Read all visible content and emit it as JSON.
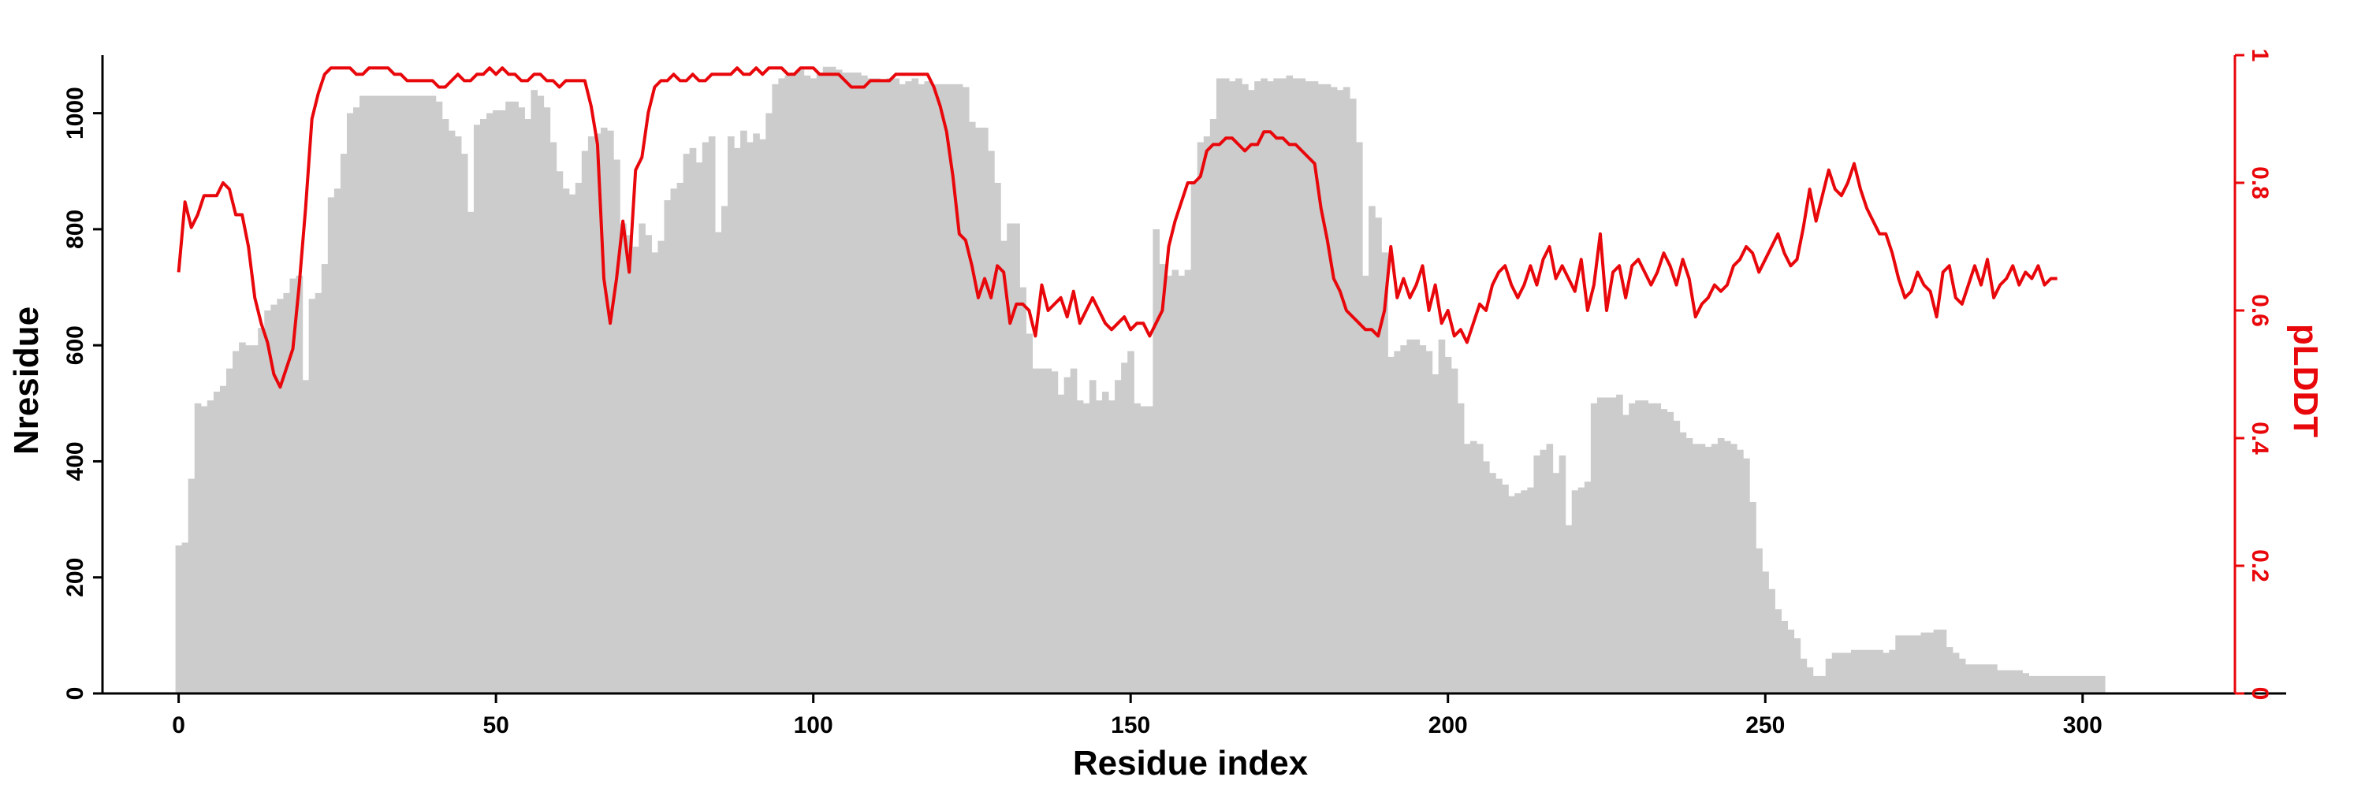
{
  "chart_data": {
    "type": "bar",
    "xlabel": "Residue index",
    "ylabel": "Nresidue",
    "y2label": "pLDDT",
    "xlim": [
      -12,
      324
    ],
    "ylim": [
      0,
      1100
    ],
    "y2lim": [
      0,
      1
    ],
    "xticks": [
      0,
      50,
      100,
      150,
      200,
      250,
      300
    ],
    "yticks": [
      0,
      200,
      400,
      600,
      800,
      1000
    ],
    "y2ticks": [
      0,
      0.2,
      0.4,
      0.6,
      0.8,
      1
    ],
    "y2tick_labels": [
      "0",
      "0.2",
      "0.4",
      "0.6",
      "0.8",
      "1"
    ],
    "series": [
      {
        "type": "bar",
        "axis": "left",
        "color": "#cccccc",
        "x_start": 0,
        "values": [
          255,
          260,
          370,
          500,
          495,
          505,
          520,
          530,
          560,
          590,
          605,
          600,
          600,
          630,
          660,
          670,
          680,
          690,
          715,
          720,
          540,
          680,
          690,
          740,
          855,
          870,
          930,
          1000,
          1010,
          1030,
          1030,
          1030,
          1030,
          1030,
          1030,
          1030,
          1030,
          1030,
          1030,
          1030,
          1030,
          1020,
          990,
          970,
          960,
          930,
          830,
          980,
          990,
          1000,
          1005,
          1005,
          1020,
          1020,
          1010,
          990,
          1040,
          1030,
          1010,
          950,
          900,
          870,
          860,
          880,
          935,
          960,
          965,
          975,
          970,
          920,
          810,
          790,
          770,
          810,
          790,
          760,
          780,
          850,
          870,
          880,
          930,
          940,
          915,
          950,
          960,
          795,
          840,
          960,
          940,
          970,
          950,
          965,
          955,
          1000,
          1050,
          1060,
          1065,
          1070,
          1075,
          1065,
          1060,
          1070,
          1080,
          1080,
          1075,
          1070,
          1070,
          1070,
          1065,
          1060,
          1060,
          1055,
          1060,
          1060,
          1050,
          1055,
          1060,
          1050,
          1055,
          1050,
          1050,
          1050,
          1050,
          1050,
          1045,
          985,
          975,
          975,
          935,
          880,
          780,
          810,
          810,
          700,
          620,
          560,
          560,
          560,
          555,
          515,
          545,
          560,
          505,
          500,
          540,
          505,
          520,
          505,
          540,
          570,
          590,
          500,
          495,
          495,
          800,
          740,
          720,
          730,
          720,
          730,
          880,
          950,
          960,
          990,
          1060,
          1060,
          1055,
          1060,
          1050,
          1040,
          1055,
          1060,
          1055,
          1060,
          1060,
          1065,
          1060,
          1060,
          1055,
          1055,
          1050,
          1050,
          1045,
          1040,
          1045,
          1025,
          950,
          720,
          840,
          820,
          760,
          580,
          590,
          600,
          610,
          610,
          600,
          590,
          550,
          610,
          580,
          560,
          500,
          430,
          435,
          430,
          400,
          380,
          370,
          360,
          340,
          345,
          350,
          355,
          410,
          420,
          430,
          380,
          410,
          290,
          350,
          355,
          365,
          500,
          510,
          510,
          510,
          515,
          480,
          500,
          505,
          505,
          500,
          500,
          490,
          485,
          470,
          450,
          440,
          430,
          430,
          425,
          430,
          440,
          435,
          430,
          420,
          405,
          330,
          250,
          210,
          180,
          145,
          125,
          110,
          95,
          60,
          45,
          30,
          30,
          60,
          70,
          70,
          70,
          75,
          75,
          75,
          75,
          75,
          70,
          75,
          100,
          100,
          100,
          100,
          105,
          105,
          110,
          110,
          80,
          70,
          60,
          50,
          50,
          50,
          50,
          50,
          40,
          40,
          40,
          40,
          35,
          30,
          30,
          30,
          30,
          30,
          30,
          30,
          30,
          30,
          30,
          30,
          30
        ]
      },
      {
        "type": "line",
        "axis": "right",
        "color": "#e8070b",
        "x_start": 0,
        "values": [
          0.66,
          0.77,
          0.73,
          0.75,
          0.78,
          0.78,
          0.78,
          0.8,
          0.79,
          0.75,
          0.75,
          0.7,
          0.62,
          0.58,
          0.55,
          0.5,
          0.48,
          0.51,
          0.54,
          0.64,
          0.76,
          0.9,
          0.94,
          0.97,
          0.98,
          0.98,
          0.98,
          0.98,
          0.97,
          0.97,
          0.98,
          0.98,
          0.98,
          0.98,
          0.97,
          0.97,
          0.96,
          0.96,
          0.96,
          0.96,
          0.96,
          0.95,
          0.95,
          0.96,
          0.97,
          0.96,
          0.96,
          0.97,
          0.97,
          0.98,
          0.97,
          0.98,
          0.97,
          0.97,
          0.96,
          0.96,
          0.97,
          0.97,
          0.96,
          0.96,
          0.95,
          0.96,
          0.96,
          0.96,
          0.96,
          0.92,
          0.86,
          0.65,
          0.58,
          0.65,
          0.74,
          0.66,
          0.82,
          0.84,
          0.91,
          0.95,
          0.96,
          0.96,
          0.97,
          0.96,
          0.96,
          0.97,
          0.96,
          0.96,
          0.97,
          0.97,
          0.97,
          0.97,
          0.98,
          0.97,
          0.97,
          0.98,
          0.97,
          0.98,
          0.98,
          0.98,
          0.97,
          0.97,
          0.98,
          0.98,
          0.98,
          0.97,
          0.97,
          0.97,
          0.97,
          0.96,
          0.95,
          0.95,
          0.95,
          0.96,
          0.96,
          0.96,
          0.96,
          0.97,
          0.97,
          0.97,
          0.97,
          0.97,
          0.97,
          0.95,
          0.92,
          0.88,
          0.81,
          0.72,
          0.71,
          0.67,
          0.62,
          0.65,
          0.62,
          0.67,
          0.66,
          0.58,
          0.61,
          0.61,
          0.6,
          0.56,
          0.64,
          0.6,
          0.61,
          0.62,
          0.59,
          0.63,
          0.58,
          0.6,
          0.62,
          0.6,
          0.58,
          0.57,
          0.58,
          0.59,
          0.57,
          0.58,
          0.58,
          0.56,
          0.58,
          0.6,
          0.7,
          0.74,
          0.77,
          0.8,
          0.8,
          0.81,
          0.85,
          0.86,
          0.86,
          0.87,
          0.87,
          0.86,
          0.85,
          0.86,
          0.86,
          0.88,
          0.88,
          0.87,
          0.87,
          0.86,
          0.86,
          0.85,
          0.84,
          0.83,
          0.76,
          0.71,
          0.65,
          0.63,
          0.6,
          0.59,
          0.58,
          0.57,
          0.57,
          0.56,
          0.6,
          0.7,
          0.62,
          0.65,
          0.62,
          0.64,
          0.67,
          0.6,
          0.64,
          0.58,
          0.6,
          0.56,
          0.57,
          0.55,
          0.58,
          0.61,
          0.6,
          0.64,
          0.66,
          0.67,
          0.64,
          0.62,
          0.64,
          0.67,
          0.64,
          0.68,
          0.7,
          0.65,
          0.67,
          0.65,
          0.63,
          0.68,
          0.6,
          0.64,
          0.72,
          0.6,
          0.66,
          0.67,
          0.62,
          0.67,
          0.68,
          0.66,
          0.64,
          0.66,
          0.69,
          0.67,
          0.64,
          0.68,
          0.65,
          0.59,
          0.61,
          0.62,
          0.64,
          0.63,
          0.64,
          0.67,
          0.68,
          0.7,
          0.69,
          0.66,
          0.68,
          0.7,
          0.72,
          0.69,
          0.67,
          0.68,
          0.73,
          0.79,
          0.74,
          0.78,
          0.82,
          0.79,
          0.78,
          0.8,
          0.83,
          0.79,
          0.76,
          0.74,
          0.72,
          0.72,
          0.69,
          0.65,
          0.62,
          0.63,
          0.66,
          0.64,
          0.63,
          0.59,
          0.66,
          0.67,
          0.62,
          0.61,
          0.64,
          0.67,
          0.64,
          0.68,
          0.62,
          0.64,
          0.65,
          0.67,
          0.64,
          0.66,
          0.65,
          0.67,
          0.64,
          0.65,
          0.65
        ]
      }
    ]
  }
}
